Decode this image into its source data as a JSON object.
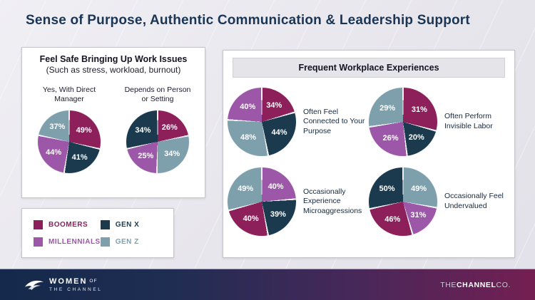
{
  "title": "Sense of Purpose, Authentic Communication & Leadership Support",
  "colors": {
    "boomers": "#8D1F5B",
    "millennials": "#9C57A8",
    "genx": "#1B3A4E",
    "genz": "#7EA0AC",
    "title_navy": "#1B3555"
  },
  "left_panel": {
    "title": "Feel Safe Bringing Up Work Issues",
    "subtitle": "(Such as stress, workload, burnout)"
  },
  "right_panel": {
    "title": "Frequent Workplace Experiences"
  },
  "legend": {
    "items": [
      {
        "label": "BOOMERS",
        "color": "#8D1F5B"
      },
      {
        "label": "GEN X",
        "color": "#1B3A4E"
      },
      {
        "label": "MILLENNIALS",
        "color": "#9C57A8"
      },
      {
        "label": "GEN Z",
        "color": "#7EA0AC"
      }
    ]
  },
  "chart_data": [
    {
      "type": "pie",
      "title": "Yes, With Direct Manager",
      "slice_order": "clockwise-from-top",
      "slices": [
        {
          "label": "Boomers",
          "gen": "boomers",
          "value": 49
        },
        {
          "label": "Gen X",
          "gen": "genx",
          "value": 41
        },
        {
          "label": "Millennials",
          "gen": "millennials",
          "value": 44
        },
        {
          "label": "Gen Z",
          "gen": "genz",
          "value": 37
        }
      ]
    },
    {
      "type": "pie",
      "title": "Depends on Person or Setting",
      "slice_order": "clockwise-from-top",
      "slices": [
        {
          "label": "Boomers",
          "gen": "boomers",
          "value": 26
        },
        {
          "label": "Gen Z",
          "gen": "genz",
          "value": 34
        },
        {
          "label": "Millennials",
          "gen": "millennials",
          "value": 25
        },
        {
          "label": "Gen X",
          "gen": "genx",
          "value": 34
        }
      ]
    },
    {
      "type": "pie",
      "title": "Often Feel Connected to Your Purpose",
      "slice_order": "clockwise-from-top",
      "slices": [
        {
          "label": "Boomers",
          "gen": "boomers",
          "value": 34
        },
        {
          "label": "Gen X",
          "gen": "genx",
          "value": 44
        },
        {
          "label": "Gen Z",
          "gen": "genz",
          "value": 48
        },
        {
          "label": "Millennials",
          "gen": "millennials",
          "value": 40
        }
      ]
    },
    {
      "type": "pie",
      "title": "Often Perform Invisible Labor",
      "slice_order": "clockwise-from-top",
      "slices": [
        {
          "label": "Boomers",
          "gen": "boomers",
          "value": 31
        },
        {
          "label": "Gen X",
          "gen": "genx",
          "value": 20
        },
        {
          "label": "Millennials",
          "gen": "millennials",
          "value": 26
        },
        {
          "label": "Gen Z",
          "gen": "genz",
          "value": 29
        }
      ]
    },
    {
      "type": "pie",
      "title": "Occasionally Experience Microaggressions",
      "slice_order": "clockwise-from-top",
      "slices": [
        {
          "label": "Millennials",
          "gen": "millennials",
          "value": 40
        },
        {
          "label": "Gen X",
          "gen": "genx",
          "value": 39
        },
        {
          "label": "Boomers",
          "gen": "boomers",
          "value": 40
        },
        {
          "label": "Gen Z",
          "gen": "genz",
          "value": 49
        }
      ]
    },
    {
      "type": "pie",
      "title": "Occasionally Feel Undervalued",
      "slice_order": "clockwise-from-top",
      "slices": [
        {
          "label": "Gen Z",
          "gen": "genz",
          "value": 49
        },
        {
          "label": "Millennials",
          "gen": "millennials",
          "value": 31
        },
        {
          "label": "Boomers",
          "gen": "boomers",
          "value": 46
        },
        {
          "label": "Gen X",
          "gen": "genx",
          "value": 50
        }
      ]
    }
  ],
  "footer": {
    "logo_word1": "WOMEN",
    "logo_word2": "OF",
    "logo_line2": "THE CHANNEL",
    "brand_the": "THE",
    "brand_channel": "CHANNEL",
    "brand_co": "CO."
  }
}
